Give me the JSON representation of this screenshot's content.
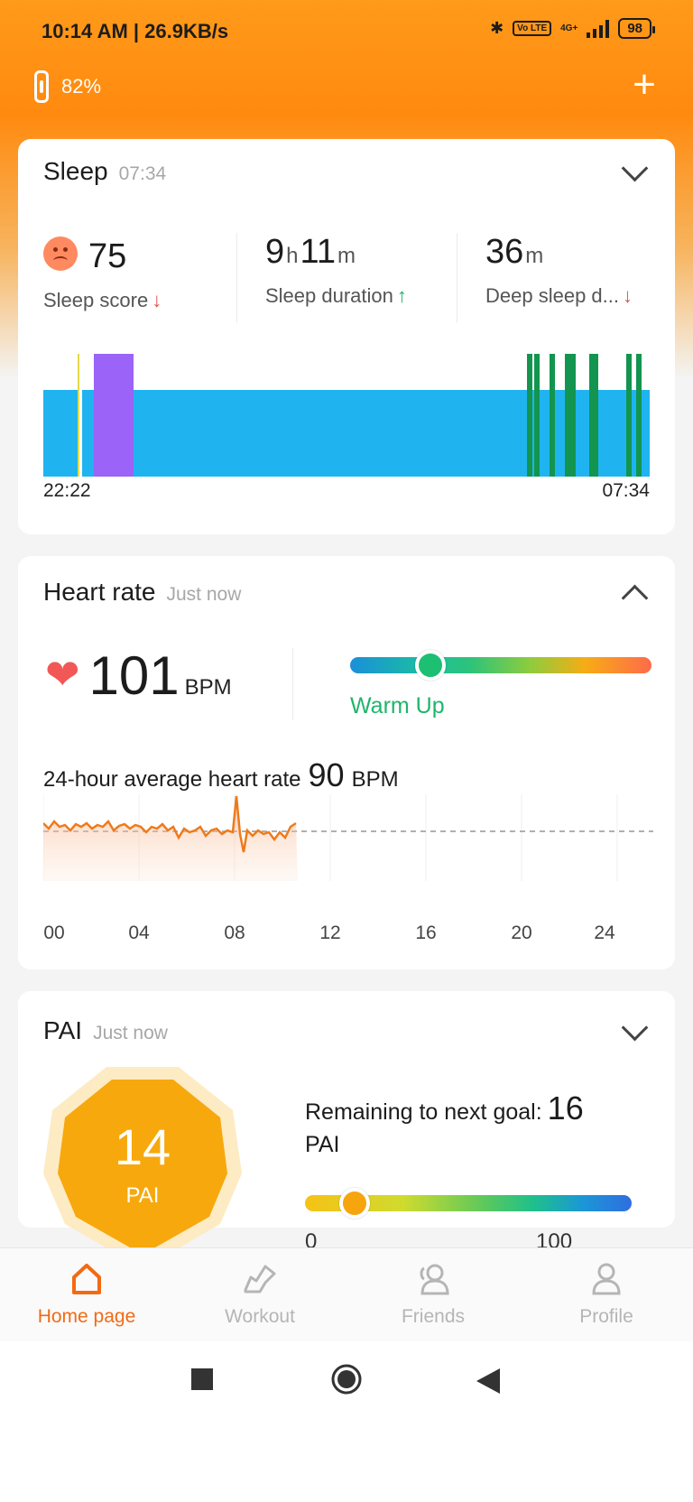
{
  "status_bar": {
    "time": "10:14 AM | 26.9KB/s",
    "volte": "Vo LTE",
    "network": "4G+",
    "battery": "98"
  },
  "device": {
    "battery": "82%"
  },
  "sleep": {
    "title": "Sleep",
    "time": "07:34",
    "score_value": "75",
    "score_label": "Sleep score",
    "duration_hours": "9",
    "duration_hours_unit": "h",
    "duration_minutes": "11",
    "duration_minutes_unit": "m",
    "duration_label": "Sleep duration",
    "deep_value": "36",
    "deep_unit": "m",
    "deep_label": "Deep sleep d...",
    "start_time": "22:22",
    "end_time": "07:34"
  },
  "heart_rate": {
    "title": "Heart rate",
    "updated": "Just now",
    "value": "101",
    "unit": "BPM",
    "zone": "Warm Up",
    "avg_label": "24-hour average heart rate",
    "avg_value": "90",
    "avg_unit": "BPM",
    "x_ticks": [
      "00",
      "04",
      "08",
      "12",
      "16",
      "20",
      "24"
    ]
  },
  "pai": {
    "title": "PAI",
    "updated": "Just now",
    "value": "14",
    "unit": "PAI",
    "remaining_label": "Remaining to next goal:",
    "remaining_value": "16",
    "remaining_unit": "PAI",
    "scale_min": "0",
    "scale_max": "100"
  },
  "nav": {
    "home": "Home page",
    "workout": "Workout",
    "friends": "Friends",
    "profile": "Profile"
  },
  "colors": {
    "accent": "#f36a13",
    "light_sleep": "#1fb4f0",
    "rem_sleep": "#9b63f7",
    "awake": "#13954f",
    "zone_green": "#1fb56b",
    "pai_orange": "#f7a80c"
  }
}
